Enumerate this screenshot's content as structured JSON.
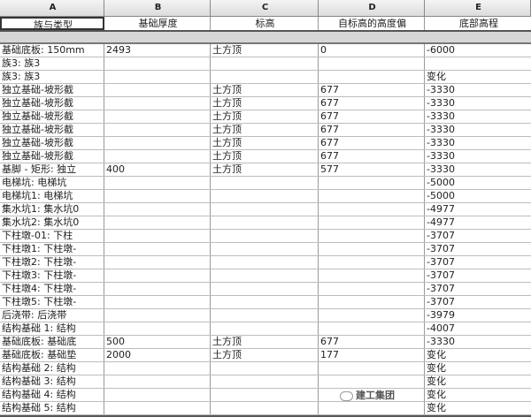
{
  "column_letters": [
    "A",
    "B",
    "C",
    "D",
    "E"
  ],
  "headers": [
    "族与类型",
    "基础厚度",
    "标高",
    "自标高的高度偏",
    "底部高程"
  ],
  "rows": [
    [
      "基础底板: 150mm",
      "2493",
      "土方顶",
      "0",
      "-6000"
    ],
    [
      "族3: 族3",
      "",
      "",
      "",
      ""
    ],
    [
      "族3: 族3",
      "",
      "",
      "",
      "变化"
    ],
    [
      "独立基础-坡形截",
      "",
      "土方顶",
      "677",
      "-3330"
    ],
    [
      "独立基础-坡形截",
      "",
      "土方顶",
      "677",
      "-3330"
    ],
    [
      "独立基础-坡形截",
      "",
      "土方顶",
      "677",
      "-3330"
    ],
    [
      "独立基础-坡形截",
      "",
      "土方顶",
      "677",
      "-3330"
    ],
    [
      "独立基础-坡形截",
      "",
      "土方顶",
      "677",
      "-3330"
    ],
    [
      "独立基础-坡形截",
      "",
      "土方顶",
      "677",
      "-3330"
    ],
    [
      "基脚 - 矩形: 独立",
      "400",
      "土方顶",
      "577",
      "-3330"
    ],
    [
      "电梯坑: 电梯坑",
      "",
      "",
      "",
      "-5000"
    ],
    [
      "电梯坑1: 电梯坑",
      "",
      "",
      "",
      "-5000"
    ],
    [
      "集水坑1: 集水坑0",
      "",
      "",
      "",
      "-4977"
    ],
    [
      "集水坑2: 集水坑0",
      "",
      "",
      "",
      "-4977"
    ],
    [
      "下柱墩-01: 下柱",
      "",
      "",
      "",
      "-3707"
    ],
    [
      "下柱墩1: 下柱墩-",
      "",
      "",
      "",
      "-3707"
    ],
    [
      "下柱墩2: 下柱墩-",
      "",
      "",
      "",
      "-3707"
    ],
    [
      "下柱墩3: 下柱墩-",
      "",
      "",
      "",
      "-3707"
    ],
    [
      "下柱墩4: 下柱墩-",
      "",
      "",
      "",
      "-3707"
    ],
    [
      "下柱墩5: 下柱墩-",
      "",
      "",
      "",
      "-3707"
    ],
    [
      "后浇带: 后浇带",
      "",
      "",
      "",
      "-3979"
    ],
    [
      "结构基础 1: 结构",
      "",
      "",
      "",
      "-4007"
    ],
    [
      "基础底板: 基础底",
      "500",
      "土方顶",
      "677",
      "-3330"
    ],
    [
      "基础底板: 基础垫",
      "2000",
      "土方顶",
      "177",
      "变化"
    ],
    [
      "结构基础 2: 结构",
      "",
      "",
      "",
      "变化"
    ],
    [
      "结构基础 3: 结构",
      "",
      "",
      "",
      "变化"
    ],
    [
      "结构基础 4: 结构",
      "",
      "",
      "",
      "变化"
    ],
    [
      "结构基础 5: 结构",
      "",
      "",
      "",
      "变化"
    ]
  ],
  "watermark": "建工集团"
}
